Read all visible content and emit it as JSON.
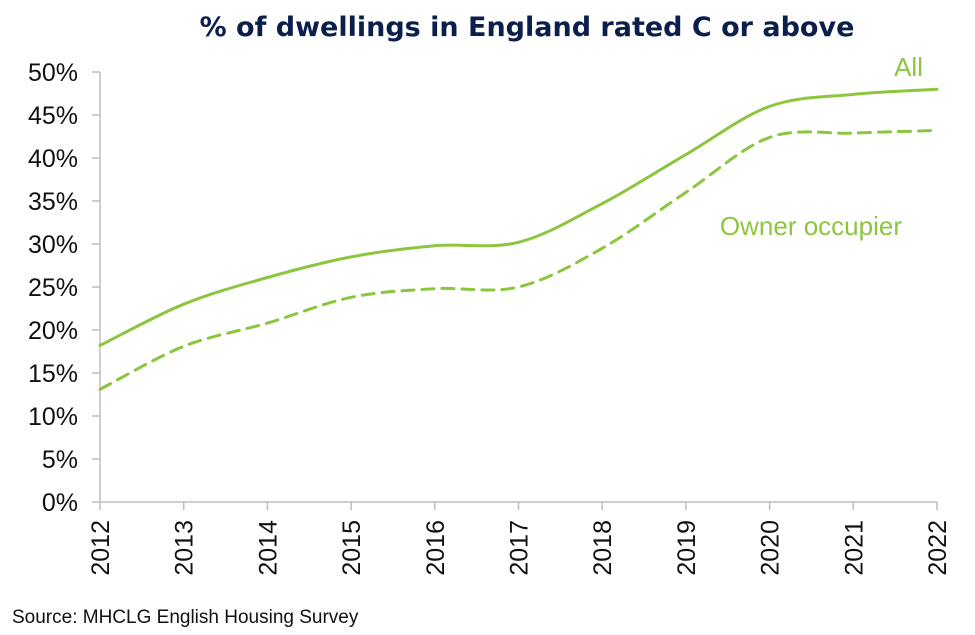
{
  "chart_data": {
    "type": "line",
    "title": "% of dwellings in England rated C or above",
    "x": [
      2012,
      2013,
      2014,
      2015,
      2016,
      2017,
      2018,
      2019,
      2020,
      2021,
      2022
    ],
    "x_tick_labels": [
      "2012",
      "2013",
      "2014",
      "2015",
      "2016",
      "2017",
      "2018",
      "2019",
      "2020",
      "2021",
      "2022"
    ],
    "ylim": [
      0,
      50
    ],
    "y_ticks": [
      0,
      5,
      10,
      15,
      20,
      25,
      30,
      35,
      40,
      45,
      50
    ],
    "y_tick_labels": [
      "0%",
      "5%",
      "10%",
      "15%",
      "20%",
      "25%",
      "30%",
      "35%",
      "40%",
      "45%",
      "50%"
    ],
    "xlabel": "",
    "ylabel": "",
    "grid": false,
    "series": [
      {
        "name": "All",
        "style": "solid",
        "color": "#8cc63f",
        "values": [
          18.2,
          23.0,
          26.1,
          28.5,
          29.8,
          30.2,
          34.7,
          40.4,
          46.0,
          47.4,
          48.0
        ]
      },
      {
        "name": "Owner occupier",
        "style": "dashed",
        "color": "#8cc63f",
        "values": [
          13.1,
          18.1,
          20.8,
          23.8,
          24.8,
          25.0,
          29.5,
          36.0,
          42.4,
          42.9,
          43.2
        ]
      }
    ]
  },
  "source": "Source: MHCLG English Housing Survey"
}
